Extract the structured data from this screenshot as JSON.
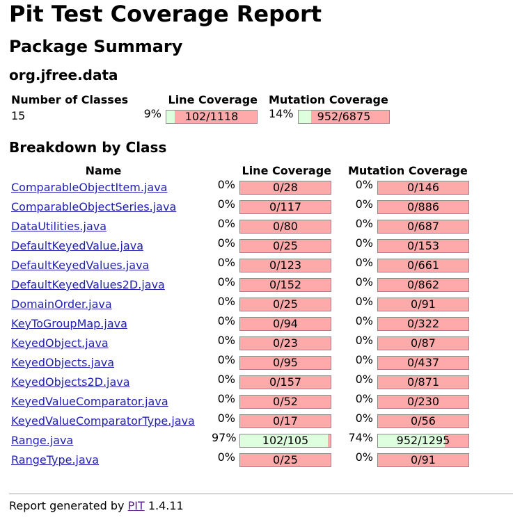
{
  "title": "Pit Test Coverage Report",
  "package_summary_heading": "Package Summary",
  "package_name": "org.jfree.data",
  "summary": {
    "headers": {
      "classes": "Number of Classes",
      "line": "Line Coverage",
      "mutation": "Mutation Coverage"
    },
    "classes": "15",
    "line_pct": "9%",
    "line_ratio": "102/1118",
    "line_fill": 0.09,
    "mutation_pct": "14%",
    "mutation_ratio": "952/6875",
    "mutation_fill": 0.14
  },
  "breakdown_heading": "Breakdown by Class",
  "breakdown_headers": {
    "name": "Name",
    "line": "Line Coverage",
    "mutation": "Mutation Coverage"
  },
  "classes": [
    {
      "name": "ComparableObjectItem.java",
      "line_pct": "0%",
      "line_ratio": "0/28",
      "line_fill": 0,
      "mut_pct": "0%",
      "mut_ratio": "0/146",
      "mut_fill": 0
    },
    {
      "name": "ComparableObjectSeries.java",
      "line_pct": "0%",
      "line_ratio": "0/117",
      "line_fill": 0,
      "mut_pct": "0%",
      "mut_ratio": "0/886",
      "mut_fill": 0
    },
    {
      "name": "DataUtilities.java",
      "line_pct": "0%",
      "line_ratio": "0/80",
      "line_fill": 0,
      "mut_pct": "0%",
      "mut_ratio": "0/687",
      "mut_fill": 0
    },
    {
      "name": "DefaultKeyedValue.java",
      "line_pct": "0%",
      "line_ratio": "0/25",
      "line_fill": 0,
      "mut_pct": "0%",
      "mut_ratio": "0/153",
      "mut_fill": 0
    },
    {
      "name": "DefaultKeyedValues.java",
      "line_pct": "0%",
      "line_ratio": "0/123",
      "line_fill": 0,
      "mut_pct": "0%",
      "mut_ratio": "0/661",
      "mut_fill": 0
    },
    {
      "name": "DefaultKeyedValues2D.java",
      "line_pct": "0%",
      "line_ratio": "0/152",
      "line_fill": 0,
      "mut_pct": "0%",
      "mut_ratio": "0/862",
      "mut_fill": 0
    },
    {
      "name": "DomainOrder.java",
      "line_pct": "0%",
      "line_ratio": "0/25",
      "line_fill": 0,
      "mut_pct": "0%",
      "mut_ratio": "0/91",
      "mut_fill": 0
    },
    {
      "name": "KeyToGroupMap.java",
      "line_pct": "0%",
      "line_ratio": "0/94",
      "line_fill": 0,
      "mut_pct": "0%",
      "mut_ratio": "0/322",
      "mut_fill": 0
    },
    {
      "name": "KeyedObject.java",
      "line_pct": "0%",
      "line_ratio": "0/23",
      "line_fill": 0,
      "mut_pct": "0%",
      "mut_ratio": "0/87",
      "mut_fill": 0
    },
    {
      "name": "KeyedObjects.java",
      "line_pct": "0%",
      "line_ratio": "0/95",
      "line_fill": 0,
      "mut_pct": "0%",
      "mut_ratio": "0/437",
      "mut_fill": 0
    },
    {
      "name": "KeyedObjects2D.java",
      "line_pct": "0%",
      "line_ratio": "0/157",
      "line_fill": 0,
      "mut_pct": "0%",
      "mut_ratio": "0/871",
      "mut_fill": 0
    },
    {
      "name": "KeyedValueComparator.java",
      "line_pct": "0%",
      "line_ratio": "0/52",
      "line_fill": 0,
      "mut_pct": "0%",
      "mut_ratio": "0/230",
      "mut_fill": 0
    },
    {
      "name": "KeyedValueComparatorType.java",
      "line_pct": "0%",
      "line_ratio": "0/17",
      "line_fill": 0,
      "mut_pct": "0%",
      "mut_ratio": "0/56",
      "mut_fill": 0
    },
    {
      "name": "Range.java",
      "line_pct": "97%",
      "line_ratio": "102/105",
      "line_fill": 0.97,
      "mut_pct": "74%",
      "mut_ratio": "952/1295",
      "mut_fill": 0.74
    },
    {
      "name": "RangeType.java",
      "line_pct": "0%",
      "line_ratio": "0/25",
      "line_fill": 0,
      "mut_pct": "0%",
      "mut_ratio": "0/91",
      "mut_fill": 0
    }
  ],
  "footer": {
    "prefix": "Report generated by",
    "link": "PIT",
    "version": "1.4.11"
  },
  "colors": {
    "covered": "#ddffdd",
    "uncovered": "#ffaaaa"
  }
}
